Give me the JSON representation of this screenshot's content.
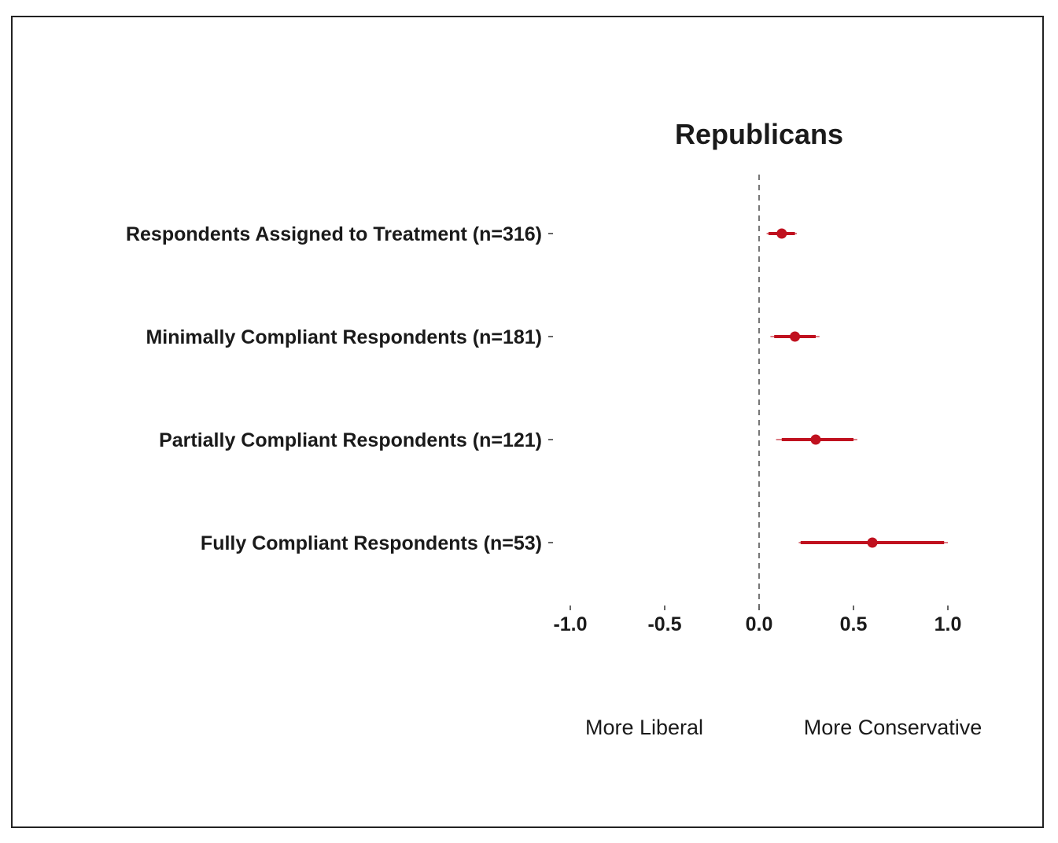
{
  "chart_data": {
    "type": "scatter",
    "title": "Republicans",
    "categories": [
      "Respondents Assigned to Treatment (n=316)",
      "Minimally Compliant Respondents (n=181)",
      "Partially Compliant Respondents (n=121)",
      "Fully Compliant Respondents (n=53)"
    ],
    "estimates": [
      0.12,
      0.19,
      0.3,
      0.6
    ],
    "ci_inner": [
      [
        0.05,
        0.19
      ],
      [
        0.08,
        0.3
      ],
      [
        0.12,
        0.5
      ],
      [
        0.22,
        0.98
      ]
    ],
    "ci_outer": [
      [
        0.04,
        0.2
      ],
      [
        0.06,
        0.32
      ],
      [
        0.09,
        0.52
      ],
      [
        0.21,
        1.0
      ]
    ],
    "xlim": [
      -1.1,
      1.15
    ],
    "x_ticks": [
      -1.0,
      -0.5,
      0.0,
      0.5,
      1.0
    ],
    "x_tick_labels": [
      "-1.0",
      "-0.5",
      "0.0",
      "0.5",
      "1.0"
    ],
    "reference_line": 0.0,
    "direction_labels": {
      "left": "More  Liberal",
      "right": "More Conservative"
    },
    "grid": false,
    "legend": "none",
    "color": "#c0111f"
  }
}
